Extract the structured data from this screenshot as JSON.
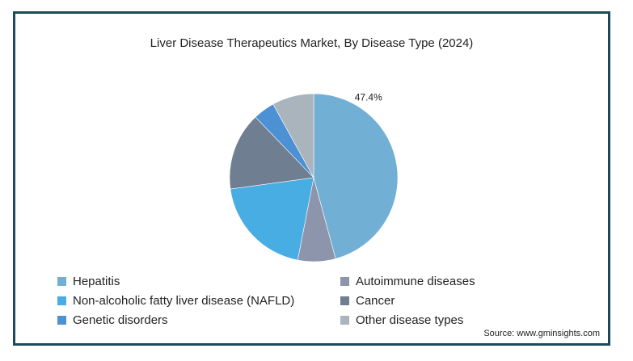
{
  "chart_data": {
    "type": "pie",
    "title": "Liver Disease Therapeutics Market, By Disease Type (2024)",
    "categories": [
      "Hepatitis",
      "Autoimmune diseases",
      "Non-alcoholic fatty liver disease (NAFLD)",
      "Cancer",
      "Genetic disorders",
      "Other disease types"
    ],
    "values": [
      47.4,
      7.5,
      20.5,
      15.5,
      4.3,
      8.3
    ],
    "colors": [
      "#72afd5",
      "#8c95ab",
      "#48ade3",
      "#6f7e91",
      "#4c91d3",
      "#a9b4bd"
    ],
    "data_labels": [
      "47.4%",
      "",
      "",
      "",
      "",
      ""
    ],
    "legend_position": "bottom",
    "grid": false
  },
  "source": "Source: www.gminsights.com"
}
